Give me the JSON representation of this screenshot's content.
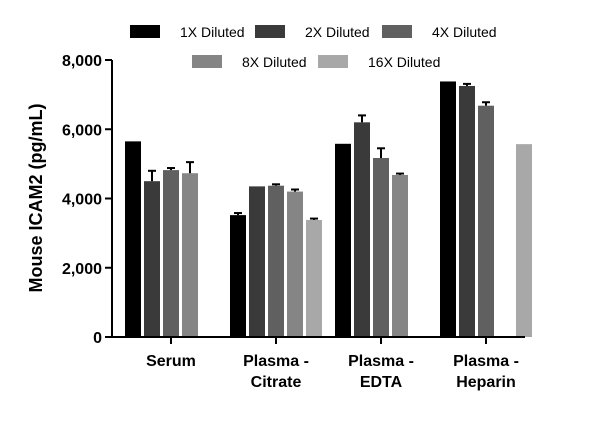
{
  "chart_data": {
    "type": "bar",
    "title": "",
    "xlabel": "",
    "ylabel": "Mouse ICAM2 (pg/mL)",
    "ylim": [
      0,
      8000
    ],
    "yticks": [
      0,
      2000,
      4000,
      6000,
      8000
    ],
    "ytick_labels": [
      "0",
      "2,000",
      "4,000",
      "6,000",
      "8,000"
    ],
    "categories": [
      [
        "Serum"
      ],
      [
        "Plasma -",
        "Citrate"
      ],
      [
        "Plasma -",
        "EDTA"
      ],
      [
        "Plasma -",
        "Heparin"
      ]
    ],
    "legend_position": "top",
    "series": [
      {
        "name": "1X Diluted",
        "color": "#000000",
        "values": [
          5650,
          3520,
          5580,
          7380
        ],
        "errors": [
          0,
          60,
          0,
          0
        ]
      },
      {
        "name": "2X Diluted",
        "color": "#3a3a3a",
        "values": [
          4500,
          4350,
          6200,
          7250
        ],
        "errors": [
          300,
          0,
          200,
          60
        ]
      },
      {
        "name": "4X Diluted",
        "color": "#606060",
        "values": [
          4820,
          4370,
          5170,
          6680
        ],
        "errors": [
          60,
          40,
          280,
          100
        ]
      },
      {
        "name": "8X Diluted",
        "color": "#858585",
        "values": [
          4730,
          4200,
          4680,
          null
        ],
        "errors": [
          320,
          60,
          40,
          0
        ]
      },
      {
        "name": "16X Diluted",
        "color": "#a8a8a8",
        "values": [
          null,
          3380,
          null,
          5570
        ],
        "errors": [
          0,
          40,
          0,
          0
        ]
      }
    ]
  }
}
